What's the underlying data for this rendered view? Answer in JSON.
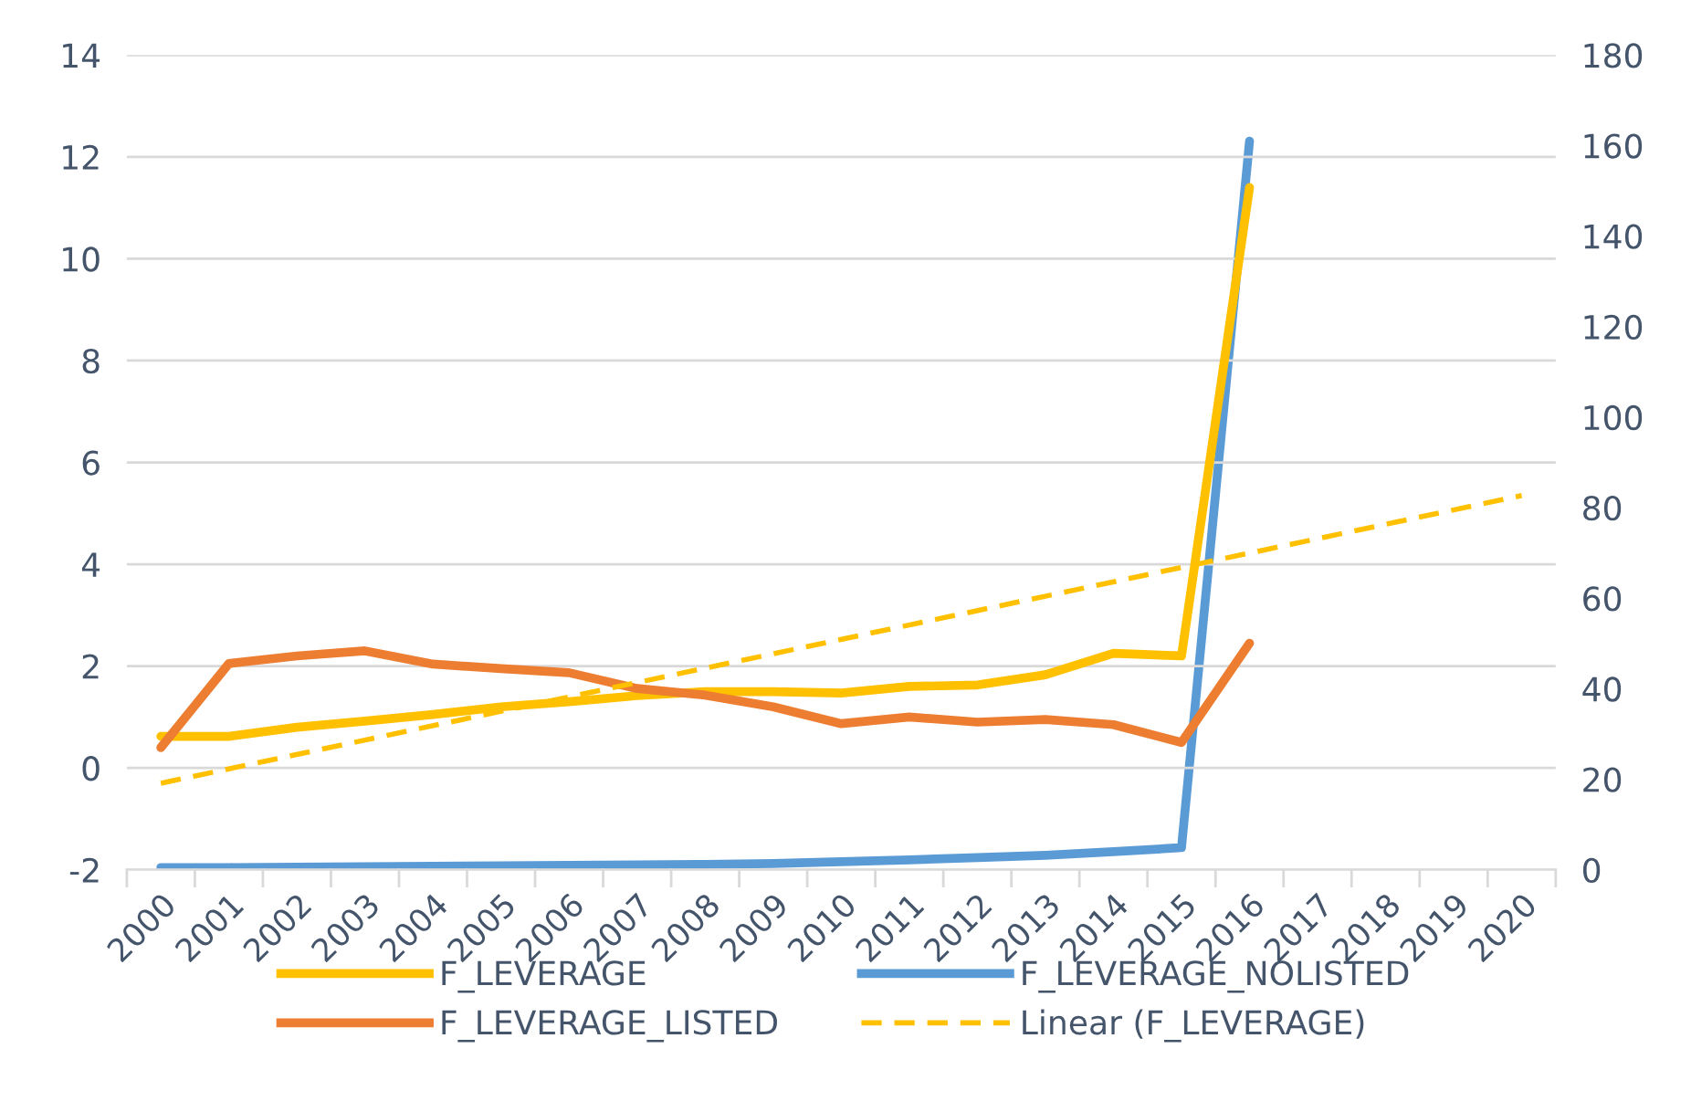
{
  "chart_data": {
    "type": "line",
    "categories": [
      "2000",
      "2001",
      "2002",
      "2003",
      "2004",
      "2005",
      "2006",
      "2007",
      "2008",
      "2009",
      "2010",
      "2011",
      "2012",
      "2013",
      "2014",
      "2015",
      "2016",
      "2017",
      "2018",
      "2019",
      "2020"
    ],
    "series": [
      {
        "name": "F_LEVERAGE",
        "color": "#ffc000",
        "values": [
          0.62,
          0.62,
          0.8,
          0.92,
          1.05,
          1.2,
          1.3,
          1.42,
          1.5,
          1.5,
          1.47,
          1.6,
          1.63,
          1.83,
          2.25,
          2.2,
          11.4,
          null,
          null,
          null,
          null
        ]
      },
      {
        "name": "F_LEVERAGE_LISTED",
        "color": "#ed7d31",
        "values": [
          0.4,
          2.05,
          2.2,
          2.3,
          2.04,
          1.95,
          1.87,
          1.56,
          1.43,
          1.2,
          0.87,
          1.0,
          0.9,
          0.95,
          0.85,
          0.5,
          2.45,
          null,
          null,
          null,
          null
        ]
      },
      {
        "name": "F_LEVERAGE_NOLISTED",
        "color": "#5b9bd5",
        "axis": "y2",
        "values": [
          0.5,
          0.5,
          0.6,
          0.7,
          0.8,
          0.9,
          1.0,
          1.1,
          1.2,
          1.4,
          1.8,
          2.2,
          2.7,
          3.2,
          4.0,
          4.9,
          161,
          null,
          null,
          null,
          null
        ]
      },
      {
        "name": "Linear (F_LEVERAGE)",
        "color": "#ffc000",
        "line_style": "dashed",
        "values": [
          -0.3,
          null,
          null,
          null,
          null,
          null,
          null,
          null,
          null,
          null,
          null,
          null,
          null,
          null,
          null,
          null,
          null,
          null,
          null,
          null,
          5.35
        ]
      }
    ],
    "ylim": [
      -2,
      14
    ],
    "yticks": [
      -2,
      0,
      2,
      4,
      6,
      8,
      10,
      12,
      14
    ],
    "y2lim": [
      0,
      180
    ],
    "y2ticks": [
      0,
      20,
      40,
      60,
      80,
      100,
      120,
      140,
      160,
      180
    ],
    "grid": "y",
    "legend": "bottom",
    "line_style": "solid",
    "marker": "none"
  }
}
